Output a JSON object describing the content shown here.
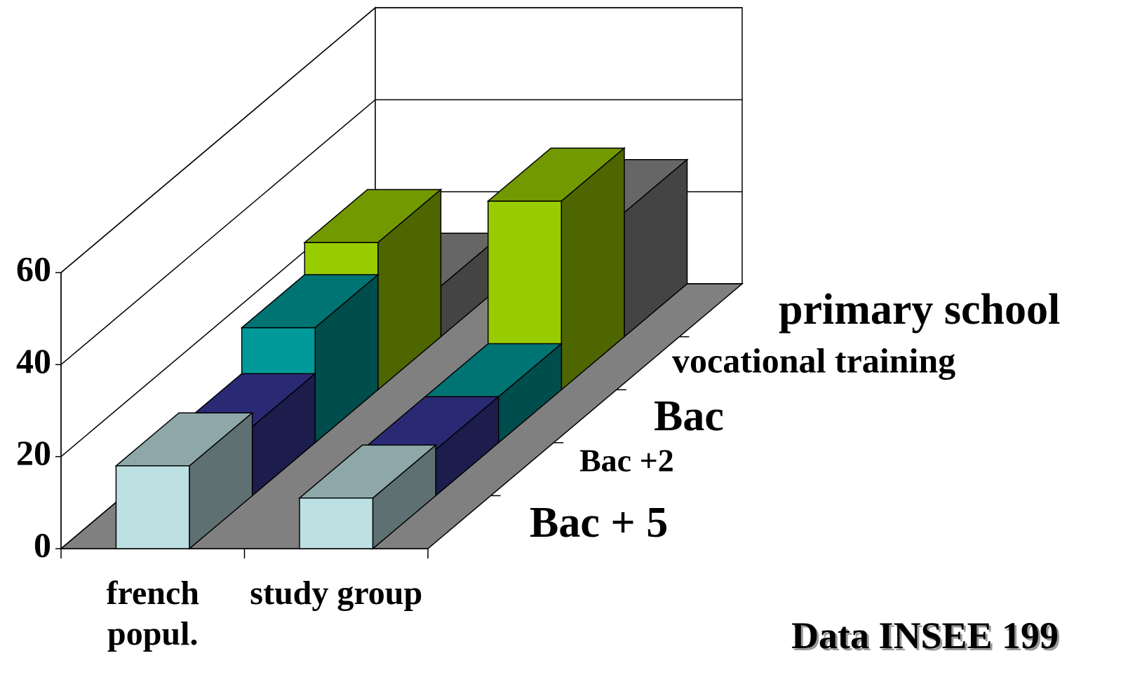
{
  "chart_data": {
    "type": "bar3d",
    "categories": [
      "french popul.",
      "study group"
    ],
    "series": [
      {
        "name": "Bac + 5",
        "color": "#bde0e3",
        "values": [
          18,
          11
        ]
      },
      {
        "name": "Bac +2",
        "color": "#38389a",
        "values": [
          15,
          10
        ]
      },
      {
        "name": "Bac",
        "color": "#009999",
        "values": [
          25,
          10
        ]
      },
      {
        "name": "vocational training",
        "color": "#99cc00",
        "values": [
          32,
          41
        ]
      },
      {
        "name": "primary school",
        "color": "#888888",
        "values": [
          11,
          27
        ]
      }
    ],
    "ylim": [
      0,
      60
    ],
    "yticks": [
      0,
      20,
      40,
      60
    ],
    "grid": true,
    "note": "Data INSEE 199"
  }
}
